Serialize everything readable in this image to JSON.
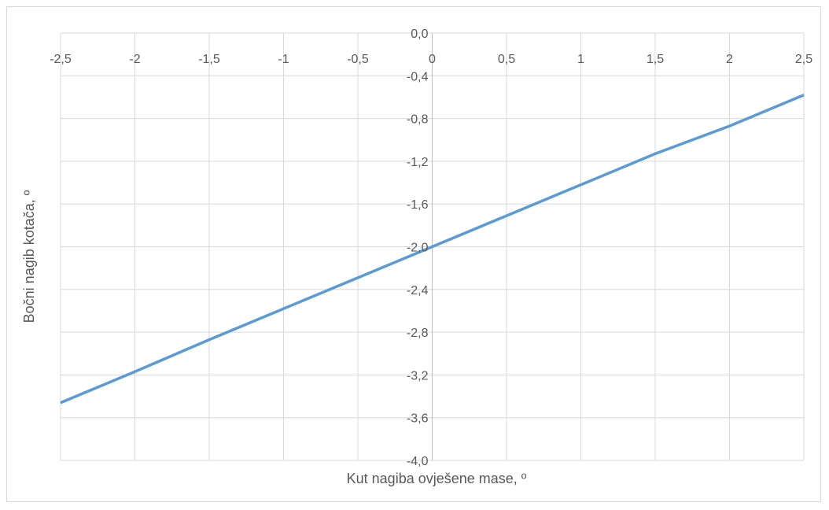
{
  "chart_data": {
    "type": "line",
    "title": "",
    "xlabel": "Kut nagiba ovješene mase, º",
    "ylabel": "Bočni nagib kotača, º",
    "xlim": [
      -2.5,
      2.5
    ],
    "ylim": [
      -4.0,
      0.0
    ],
    "x_ticks": [
      -2.5,
      -2,
      -1.5,
      -1,
      -0.5,
      0,
      0.5,
      1,
      1.5,
      2,
      2.5
    ],
    "x_tick_labels": [
      "-2,5",
      "-2",
      "-1,5",
      "-1",
      "-0,5",
      "0",
      "0,5",
      "1",
      "1,5",
      "2",
      "2,5"
    ],
    "y_ticks": [
      0.0,
      -0.4,
      -0.8,
      -1.2,
      -1.6,
      -2.0,
      -2.4,
      -2.8,
      -3.2,
      -3.6,
      -4.0
    ],
    "y_tick_labels": [
      "0,0",
      "-0,4",
      "-0,8",
      "-1,2",
      "-1,6",
      "-2,0",
      "-2,4",
      "-2,8",
      "-3,2",
      "-3,6",
      "-4,0"
    ],
    "grid": true,
    "series": [
      {
        "color": "#5b9bd5",
        "x": [
          -2.5,
          -2,
          -1.5,
          -1,
          -0.5,
          0,
          0.5,
          1,
          1.5,
          2,
          2.5
        ],
        "y": [
          -3.46,
          -3.17,
          -2.87,
          -2.58,
          -2.29,
          -2.0,
          -1.71,
          -1.42,
          -1.13,
          -0.87,
          -0.58
        ]
      }
    ]
  },
  "colors": {
    "grid": "#d9d9d9",
    "axis": "#bfbfbf",
    "text": "#595959"
  }
}
